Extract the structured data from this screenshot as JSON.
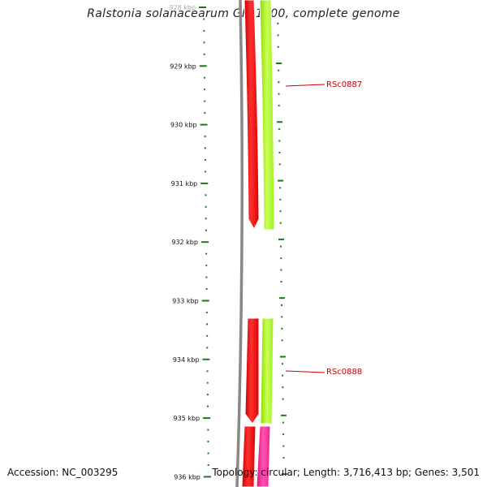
{
  "title": "Ralstonia solanacearum GMI1000, complete genome",
  "footer": {
    "accession": "Accession: NC_003295",
    "summary": "Topology: circular; Length: 3,716,413 bp; Genes: 3,501"
  },
  "ruler": {
    "unit": "kbp",
    "labels": [
      "928 kbp",
      "929 kbp",
      "930 kbp",
      "931 kbp",
      "932 kbp",
      "933 kbp",
      "934 kbp",
      "935 kbp",
      "936 kbp"
    ]
  },
  "genes": [
    {
      "label": "RSc0887",
      "start_kbp": 928.0,
      "end_kbp": 931.8
    },
    {
      "label": "RSc0888",
      "start_kbp": 933.3,
      "end_kbp": 935.0
    },
    {
      "label": "",
      "start_kbp": 935.1,
      "end_kbp": 936.2
    }
  ],
  "colors": {
    "forward_gene": "#ff0000",
    "cds": "#aaff33",
    "pink_feature": "#ff2299",
    "backbone": "#888888",
    "tick": "#1a7a1a",
    "label": "#cc0000"
  }
}
